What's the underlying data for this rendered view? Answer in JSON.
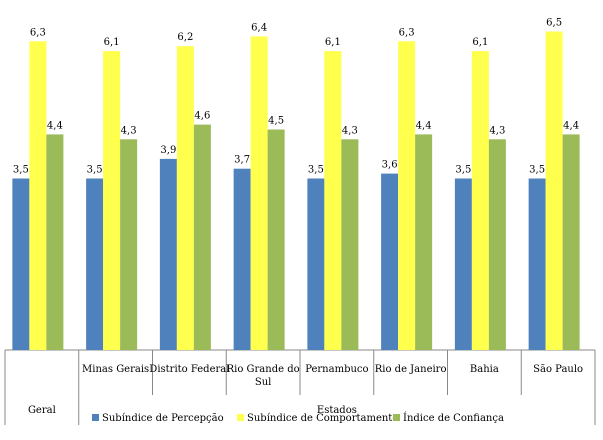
{
  "chart_data": {
    "type": "bar",
    "categories": [
      "",
      "Minas Gerais",
      "Distrito Federal",
      "Rio Grande do Sul",
      "Pernambuco",
      "Rio de Janeiro",
      "Bahia",
      "São Paulo"
    ],
    "category_groups": [
      {
        "label": "Geral",
        "span": [
          0,
          0
        ]
      },
      {
        "label": "Estados",
        "span": [
          1,
          7
        ]
      }
    ],
    "series": [
      {
        "name": "Subíndice de Percepção",
        "color": "#4F81BD",
        "values": [
          3.5,
          3.5,
          3.9,
          3.7,
          3.5,
          3.6,
          3.5,
          3.5
        ],
        "labels": [
          "3,5",
          "3,5",
          "3,9",
          "3,7",
          "3,5",
          "3,6",
          "3,5",
          "3,5"
        ]
      },
      {
        "name": "Subíndice de Comportamento",
        "color": "#FFFF4D",
        "values": [
          6.3,
          6.1,
          6.2,
          6.4,
          6.1,
          6.3,
          6.1,
          6.5
        ],
        "labels": [
          "6,3",
          "6,1",
          "6,2",
          "6,4",
          "6,1",
          "6,3",
          "6,1",
          "6,5"
        ]
      },
      {
        "name": "Índice de Confiança",
        "color": "#9BBB59",
        "values": [
          4.4,
          4.3,
          4.6,
          4.5,
          4.3,
          4.4,
          4.3,
          4.4
        ],
        "labels": [
          "4,4",
          "4,3",
          "4,6",
          "4,5",
          "4,3",
          "4,4",
          "4,3",
          "4,4"
        ]
      }
    ],
    "ylim": [
      0,
      7
    ],
    "grid": false,
    "legend": "bottom"
  }
}
